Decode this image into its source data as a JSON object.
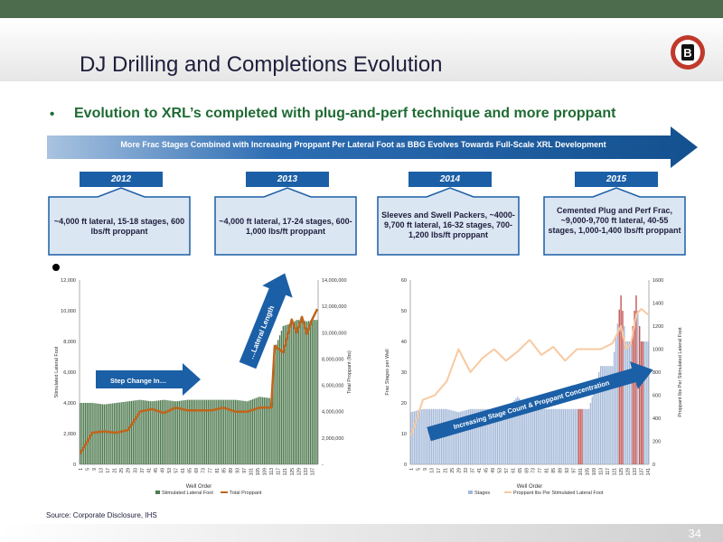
{
  "slide": {
    "title": "DJ Drilling and Completions Evolution",
    "bullet": "•",
    "headline": "Evolution to XRL’s completed with plug-and-perf technique and more proppant",
    "banner": "More Frac Stages Combined with Increasing Proppant Per Lateral Foot as BBG Evolves Towards Full-Scale XRL Development",
    "logo_letter": "B",
    "years": [
      {
        "label": "2012",
        "text": "~4,000 ft lateral, 15-18 stages, 600 lbs/ft proppant"
      },
      {
        "label": "2013",
        "text": "~4,000 ft lateral, 17-24 stages, 600-1,000 lbs/ft proppant"
      },
      {
        "label": "2014",
        "text": "Sleeves and Swell Packers, ~4000-9,700 ft lateral, 16-32 stages, 700-1,200 lbs/ft proppant"
      },
      {
        "label": "2015",
        "text": "Cemented Plug and Perf Frac, ~9,000-9,700 ft lateral, 40-55 stages, 1,000-1,400 lbs/ft proppant"
      }
    ],
    "source": "Source: Corporate Disclosure, IHS",
    "page_number": "34"
  },
  "colors": {
    "green_bar": "#4f7a4f",
    "orange_line": "#c0651a",
    "blue_bar": "#a4b9d9",
    "peach_line": "#f8c9a0",
    "red_bar": "#c0504d",
    "arrow_blue": "#1b5fa6",
    "headline_green": "#1f6b33"
  },
  "chart_data": [
    {
      "type": "bar",
      "xlabel": "Well Order",
      "ylabel": "Stimulated Lateral Foot",
      "y2label": "Total Proppant (lbs)",
      "ylim": [
        0,
        12000
      ],
      "y2lim": [
        0,
        14000000
      ],
      "yticks": [
        "0",
        "2,000",
        "4,000",
        "6,000",
        "8,000",
        "10,000",
        "12,000"
      ],
      "y2ticks": [
        "-",
        "2,000,000",
        "4,000,000",
        "6,000,000",
        "8,000,000",
        "10,000,000",
        "12,000,000",
        "14,000,000"
      ],
      "xticks": [
        "1",
        "5",
        "9",
        "13",
        "17",
        "21",
        "25",
        "29",
        "33",
        "37",
        "41",
        "45",
        "49",
        "53",
        "57",
        "61",
        "65",
        "69",
        "73",
        "77",
        "81",
        "85",
        "89",
        "93",
        "97",
        "101",
        "105",
        "109",
        "113",
        "117",
        "121",
        "125",
        "129",
        "133",
        "137"
      ],
      "x": [
        1,
        8,
        15,
        22,
        29,
        36,
        43,
        50,
        57,
        64,
        71,
        78,
        85,
        92,
        99,
        106,
        113,
        115,
        120,
        125,
        128,
        131,
        134,
        137,
        140
      ],
      "series": [
        {
          "name": "Stimulated Lateral Foot",
          "values": [
            4000,
            4000,
            3900,
            4000,
            4100,
            4200,
            4100,
            4200,
            4100,
            4200,
            4200,
            4200,
            4200,
            4200,
            4100,
            4400,
            4300,
            7500,
            9000,
            9200,
            9400,
            9400,
            9300,
            9400,
            9400
          ]
        },
        {
          "name": "Total Proppant",
          "values": [
            800000,
            2400000,
            2500000,
            2400000,
            2600000,
            4000000,
            4200000,
            3900000,
            4300000,
            4100000,
            4100000,
            4100000,
            4300000,
            4000000,
            4000000,
            4300000,
            4300000,
            9000000,
            8500000,
            11000000,
            10000000,
            11200000,
            9900000,
            11000000,
            11800000
          ]
        }
      ],
      "annotations": [
        "Step Change In…",
        "…Lateral Length"
      ],
      "legend_position": "bottom"
    },
    {
      "type": "bar",
      "xlabel": "Well Order",
      "ylabel": "Frac Stages per Well",
      "y2label": "Proppant lbs Per Stimulated Lateral Foot",
      "ylim": [
        0,
        60
      ],
      "y2lim": [
        0,
        1600
      ],
      "yticks": [
        "0",
        "10",
        "20",
        "30",
        "40",
        "50",
        "60"
      ],
      "y2ticks": [
        "0",
        "200",
        "400",
        "600",
        "800",
        "1000",
        "1200",
        "1400",
        "1600"
      ],
      "xticks": [
        "1",
        "5",
        "9",
        "13",
        "17",
        "21",
        "25",
        "29",
        "33",
        "37",
        "41",
        "45",
        "49",
        "53",
        "57",
        "61",
        "65",
        "69",
        "73",
        "77",
        "81",
        "85",
        "89",
        "93",
        "97",
        "101",
        "105",
        "109",
        "113",
        "117",
        "121",
        "125",
        "129",
        "133",
        "137",
        "141"
      ],
      "x": [
        1,
        8,
        15,
        22,
        29,
        36,
        43,
        50,
        57,
        64,
        71,
        78,
        85,
        92,
        99,
        106,
        113,
        120,
        125,
        128,
        131,
        134,
        137,
        141
      ],
      "series": [
        {
          "name": "Stages",
          "values": [
            17,
            18,
            18,
            18,
            17,
            18,
            18,
            18,
            18,
            22,
            18,
            18,
            18,
            18,
            18,
            18,
            32,
            32,
            55,
            40,
            40,
            55,
            40,
            40
          ]
        },
        {
          "name": "Proppant lbs Per Stimulated Lateral Foot",
          "values": [
            250,
            560,
            600,
            720,
            1000,
            800,
            920,
            1000,
            900,
            980,
            1080,
            950,
            1020,
            900,
            1000,
            1000,
            1000,
            1050,
            1200,
            1000,
            1050,
            1300,
            1350,
            1300
          ]
        }
      ],
      "highlighted_stage_wells": [
        101,
        125,
        133,
        137
      ],
      "annotations": [
        "Increasing Stage Count & Proppant Concentration"
      ],
      "legend_position": "bottom"
    }
  ]
}
